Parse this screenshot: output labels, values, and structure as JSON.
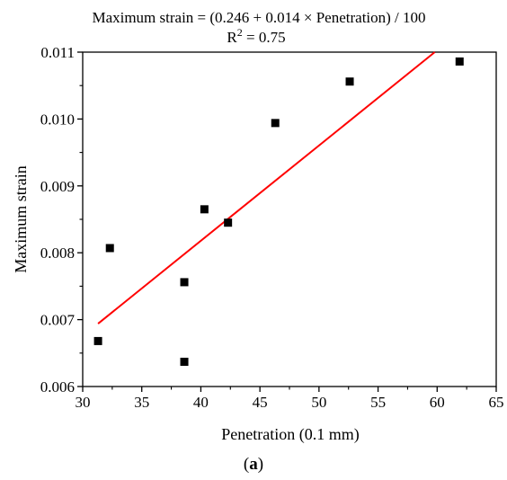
{
  "chart_data": {
    "type": "scatter",
    "title": "",
    "xlabel": "Penetration (0.1 mm)",
    "ylabel": "Maximum strain",
    "xlim": [
      30,
      65
    ],
    "ylim": [
      0.006,
      0.011
    ],
    "x_ticks": [
      "30",
      "35",
      "40",
      "45",
      "50",
      "55",
      "60",
      "65"
    ],
    "y_ticks": [
      "0.006",
      "0.007",
      "0.008",
      "0.009",
      "0.010",
      "0.011"
    ],
    "grid": false,
    "series": [
      {
        "type": "scatter",
        "marker": "square",
        "color": "#000000",
        "points": [
          {
            "x": 31.3,
            "y": 0.00668
          },
          {
            "x": 32.3,
            "y": 0.00807
          },
          {
            "x": 38.6,
            "y": 0.00756
          },
          {
            "x": 38.6,
            "y": 0.00637
          },
          {
            "x": 40.3,
            "y": 0.00865
          },
          {
            "x": 42.3,
            "y": 0.00845
          },
          {
            "x": 46.3,
            "y": 0.00994
          },
          {
            "x": 52.6,
            "y": 0.01056
          },
          {
            "x": 61.9,
            "y": 0.01086
          }
        ]
      },
      {
        "type": "line",
        "color": "#ff0000",
        "points": [
          {
            "x": 31.3,
            "y": 0.00694
          },
          {
            "x": 59.8,
            "y": 0.011
          }
        ]
      }
    ],
    "annotations": [
      "Maximum strain = (0.246 + 0.014 × Penetration) / 100",
      "R² = 0.75"
    ]
  },
  "panel_label": {
    "open": "(",
    "letter": "a",
    "close": ")"
  }
}
